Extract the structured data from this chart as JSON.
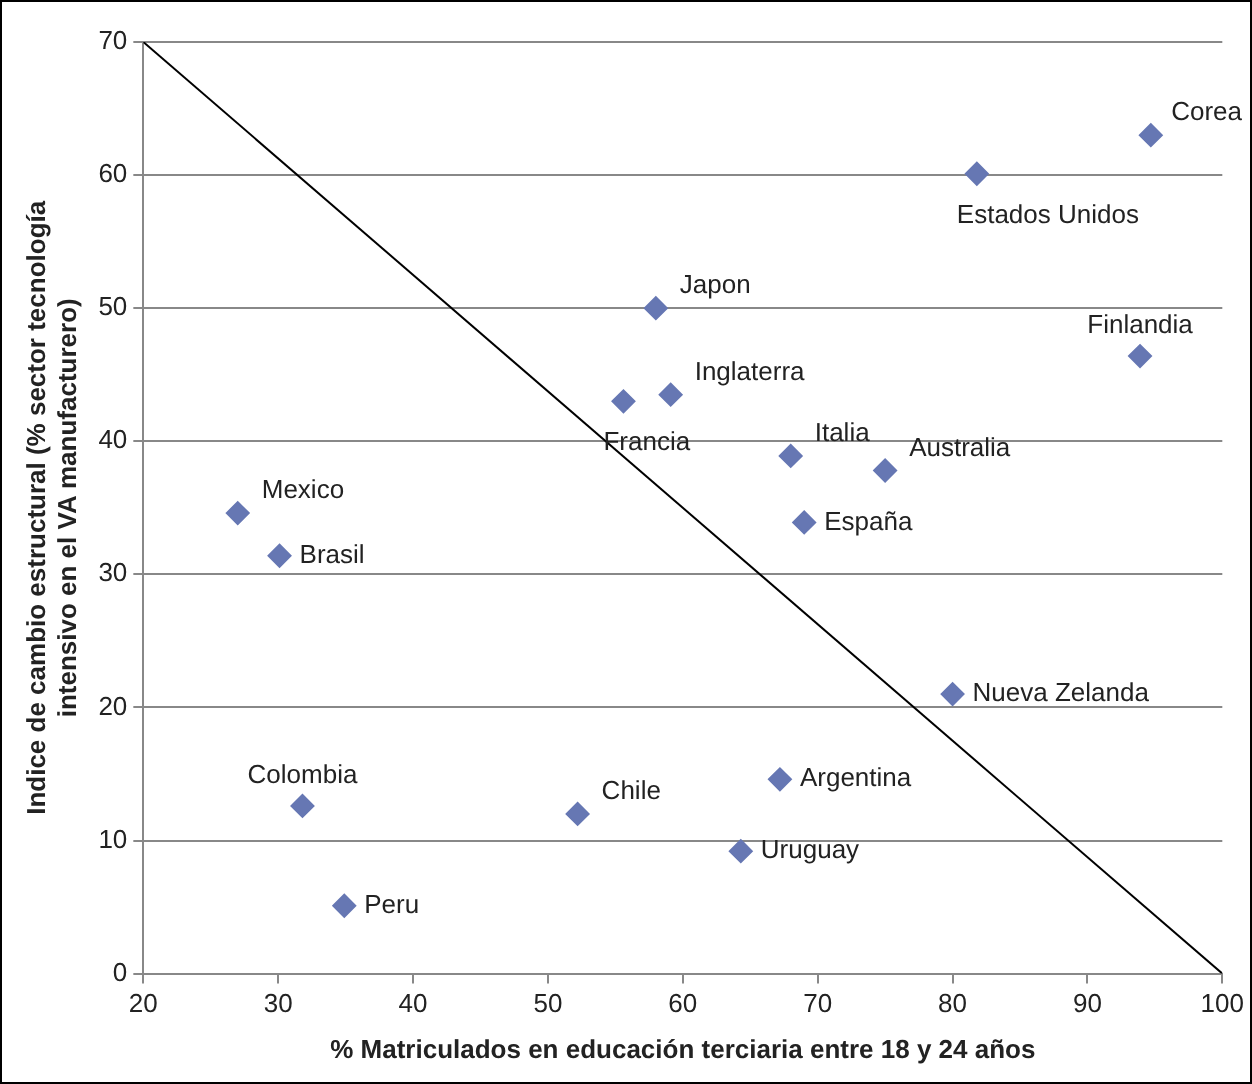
{
  "chart_data": {
    "type": "scatter",
    "xlabel": "% Matriculados en educación terciaria entre 18 y 24 años",
    "ylabel": "Indice de cambio estructural (% sector tecnología intensivo en el VA manufacturero)",
    "xlim": [
      20,
      100
    ],
    "xticks": [
      20,
      30,
      40,
      50,
      60,
      70,
      80,
      90,
      100
    ],
    "ylim": [
      0,
      70
    ],
    "yticks": [
      0,
      10,
      20,
      30,
      40,
      50,
      60,
      70
    ],
    "grid": "y",
    "legend": false,
    "marker": "diamond",
    "series": [
      {
        "color": "#6677b3",
        "x": [
          94.7,
          81.8,
          58.0,
          93.9,
          55.6,
          59.1,
          68.0,
          75.0,
          69.0,
          27.0,
          30.1,
          31.8,
          52.2,
          67.2,
          64.3,
          34.9,
          80.0
        ],
        "values": [
          63.0,
          60.1,
          50.0,
          46.4,
          43.0,
          43.5,
          38.9,
          37.8,
          33.9,
          34.6,
          31.4,
          12.6,
          12.0,
          14.6,
          9.2,
          5.1,
          21.0
        ]
      },
      {
        "type": "line",
        "color": "#000000",
        "marker": "none",
        "line_style": "solid",
        "x": [
          20,
          100
        ],
        "values": [
          70,
          0
        ]
      }
    ],
    "annotations": [
      {
        "text": "Corea",
        "x": 94.7,
        "y": 63.0
      },
      {
        "text": "Estados Unidos",
        "x": 81.8,
        "y": 60.1
      },
      {
        "text": "Japon",
        "x": 58.0,
        "y": 50.0
      },
      {
        "text": "Finlandia",
        "x": 93.9,
        "y": 46.4
      },
      {
        "text": "Francia",
        "x": 55.6,
        "y": 43.0
      },
      {
        "text": "Inglaterra",
        "x": 59.1,
        "y": 43.5
      },
      {
        "text": "Italia",
        "x": 68.0,
        "y": 38.9
      },
      {
        "text": "Australia",
        "x": 75.0,
        "y": 37.8
      },
      {
        "text": "España",
        "x": 69.0,
        "y": 33.9
      },
      {
        "text": "Mexico",
        "x": 27.0,
        "y": 34.6
      },
      {
        "text": "Brasil",
        "x": 30.1,
        "y": 31.4
      },
      {
        "text": "Colombia",
        "x": 31.8,
        "y": 12.6
      },
      {
        "text": "Chile",
        "x": 52.2,
        "y": 12.0
      },
      {
        "text": "Argentina",
        "x": 67.2,
        "y": 14.6
      },
      {
        "text": "Uruguay",
        "x": 64.3,
        "y": 9.2
      },
      {
        "text": "Peru",
        "x": 34.9,
        "y": 5.1
      },
      {
        "text": "Nueva Zelanda",
        "x": 80.0,
        "y": 21.0
      }
    ]
  }
}
